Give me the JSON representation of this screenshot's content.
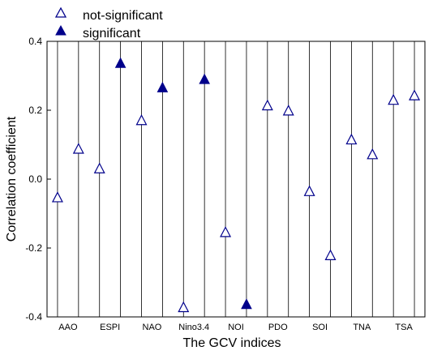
{
  "chart_data": {
    "type": "scatter",
    "xlabel": "The GCV indices",
    "ylabel": "Correlation coefficient",
    "ylim": [
      -0.4,
      0.4
    ],
    "yticks": [
      0.4,
      0.2,
      0.0,
      -0.2,
      -0.4
    ],
    "ytick_labels": [
      "0.4",
      "0.2",
      "0.0",
      "-0.2",
      "-0.4"
    ],
    "grid": "vertical lines between index pairs",
    "legend_placement": "top-left, above plot",
    "categories": [
      "AAO",
      "ESPI",
      "NAO",
      "Nino3.4",
      "NOI",
      "PDO",
      "SOI",
      "TNA",
      "TSA"
    ],
    "series": [
      {
        "name": "not-significant",
        "marker": "open-triangle",
        "color": "#00008B",
        "points": [
          {
            "category": "AAO",
            "y": -0.054
          },
          {
            "category": "AAO",
            "y": 0.087
          },
          {
            "category": "ESPI",
            "y": 0.03
          },
          {
            "category": "NAO",
            "y": 0.17
          },
          {
            "category": "Nino3.4",
            "y": -0.373
          },
          {
            "category": "NOI",
            "y": -0.155
          },
          {
            "category": "PDO",
            "y": 0.213
          },
          {
            "category": "PDO",
            "y": 0.198
          },
          {
            "category": "SOI",
            "y": -0.036
          },
          {
            "category": "SOI",
            "y": -0.222
          },
          {
            "category": "TNA",
            "y": 0.114
          },
          {
            "category": "TNA",
            "y": 0.071
          },
          {
            "category": "TSA",
            "y": 0.229
          },
          {
            "category": "TSA",
            "y": 0.242
          }
        ]
      },
      {
        "name": "significant",
        "marker": "filled-triangle",
        "color": "#00008B",
        "points": [
          {
            "category": "ESPI",
            "y": 0.336
          },
          {
            "category": "NAO",
            "y": 0.265
          },
          {
            "category": "Nino3.4",
            "y": 0.289
          },
          {
            "category": "NOI",
            "y": -0.364
          }
        ]
      }
    ]
  }
}
